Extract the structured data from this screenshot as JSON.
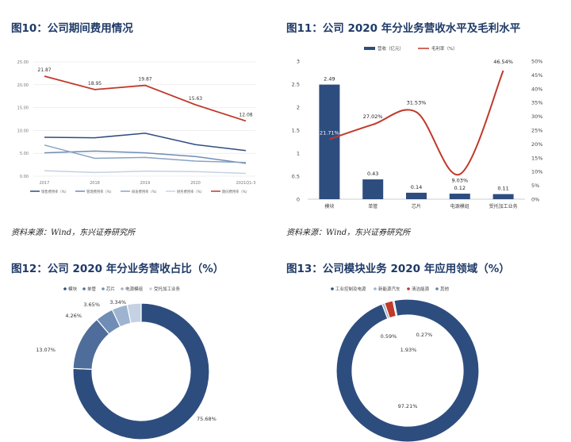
{
  "titles": {
    "fig10": "图10：公司期间费用情况",
    "fig11": "图11：公司 2020 年分业务营收水平及毛利水平",
    "fig12": "图12：公司 2020 年分业务营收占比（%）",
    "fig13": "图13：公司模块业务 2020 年应用领域（%）"
  },
  "sources": {
    "fig10": "资料来源：Wind，东兴证券研究所",
    "fig11": "资料来源：Wind，东兴证券研究所"
  },
  "colors": {
    "title": "#1f3a68",
    "navy": "#2e4d7f",
    "red": "#c0392b",
    "mid_blue": "#4f6d9a",
    "light_blue": "#6f8db5",
    "pale_blue": "#9db3cf",
    "very_pale_blue": "#c4d2e4",
    "teal": "#5e86a0",
    "orange": "#c97f3c"
  },
  "chart_data": [
    {
      "id": "fig10",
      "type": "line",
      "categories": [
        "2017",
        "2018",
        "2019",
        "2020",
        "2021Q1-3"
      ],
      "yticks": [
        "0.00",
        "5.00",
        "10.00",
        "15.00",
        "20.00",
        "25.00"
      ],
      "ylim": [
        0,
        25
      ],
      "grid": true,
      "legend_position": "bottom",
      "series": [
        {
          "name": "销售费用率（%）",
          "color": "#2e4d7f",
          "values": [
            8.5,
            8.4,
            9.4,
            6.9,
            5.6
          ],
          "labels": []
        },
        {
          "name": "管理费用率（%）",
          "color": "#6f8db5",
          "values": [
            5.1,
            5.5,
            5.1,
            4.3,
            2.8
          ],
          "labels": []
        },
        {
          "name": "研发费用率（%）",
          "color": "#8ba3c4",
          "values": [
            6.8,
            3.9,
            4.1,
            3.3,
            3.0
          ],
          "labels": []
        },
        {
          "name": "财务费用率（%）",
          "color": "#c4d2e4",
          "values": [
            1.2,
            0.8,
            1.1,
            1.0,
            0.6
          ],
          "labels": []
        },
        {
          "name": "期间费用率（%）",
          "color": "#c0392b",
          "values": [
            21.87,
            18.95,
            19.87,
            15.63,
            12.08
          ],
          "labels": [
            "21.87",
            "18.95",
            "19.87",
            "15.63",
            "12.08"
          ]
        }
      ]
    },
    {
      "id": "fig11",
      "type": "bar",
      "categories": [
        "模块",
        "单管",
        "芯片",
        "电源模组",
        "受托加工业务"
      ],
      "left_axis": {
        "ticks": [
          "0",
          "0.5",
          "1",
          "1.5",
          "2",
          "2.5",
          "3"
        ],
        "ylim": [
          0,
          3
        ]
      },
      "right_axis": {
        "ticks": [
          "0%",
          "5%",
          "10%",
          "15%",
          "20%",
          "25%",
          "30%",
          "35%",
          "40%",
          "45%",
          "50%"
        ],
        "ylim": [
          0,
          50
        ]
      },
      "legend_position": "top",
      "series": [
        {
          "name": "营收（亿元）",
          "type": "bar",
          "axis": "left",
          "color": "#2e4d7f",
          "values": [
            2.49,
            0.43,
            0.14,
            0.12,
            0.11
          ],
          "labels": [
            "2.49",
            "0.43",
            "0.14",
            "0.12",
            "0.11"
          ]
        },
        {
          "name": "毛利率（%）",
          "type": "line",
          "axis": "right",
          "color": "#c0392b",
          "values": [
            21.71,
            27.02,
            31.53,
            9.03,
            46.54
          ],
          "labels": [
            "21.71%",
            "27.02%",
            "31.53%",
            "9.03%",
            "46.54%"
          ]
        }
      ]
    },
    {
      "id": "fig12",
      "type": "pie",
      "legend_position": "top",
      "slices": [
        {
          "name": "模块",
          "value": 75.68,
          "label": "75.68%",
          "color": "#2e4d7f"
        },
        {
          "name": "单管",
          "value": 13.07,
          "label": "13.07%",
          "color": "#4f6d9a"
        },
        {
          "name": "芯片",
          "value": 4.26,
          "label": "4.26%",
          "color": "#6f8db5"
        },
        {
          "name": "电源模组",
          "value": 3.65,
          "label": "3.65%",
          "color": "#9db3cf"
        },
        {
          "name": "受托加工业务",
          "value": 3.34,
          "label": "3.34%",
          "color": "#c4d2e4"
        }
      ]
    },
    {
      "id": "fig13",
      "type": "pie",
      "legend_position": "top",
      "slices": [
        {
          "name": "工业控制及电源",
          "value": 97.21,
          "label": "97.21%",
          "color": "#2e4d7f"
        },
        {
          "name": "新能源汽车",
          "value": 0.59,
          "label": "0.59%",
          "color": "#9db3cf"
        },
        {
          "name": "清洁能源",
          "value": 1.93,
          "label": "1.93%",
          "color": "#c0392b"
        },
        {
          "name": "其他",
          "value": 0.27,
          "label": "0.27%",
          "color": "#5e86a0"
        }
      ]
    }
  ]
}
